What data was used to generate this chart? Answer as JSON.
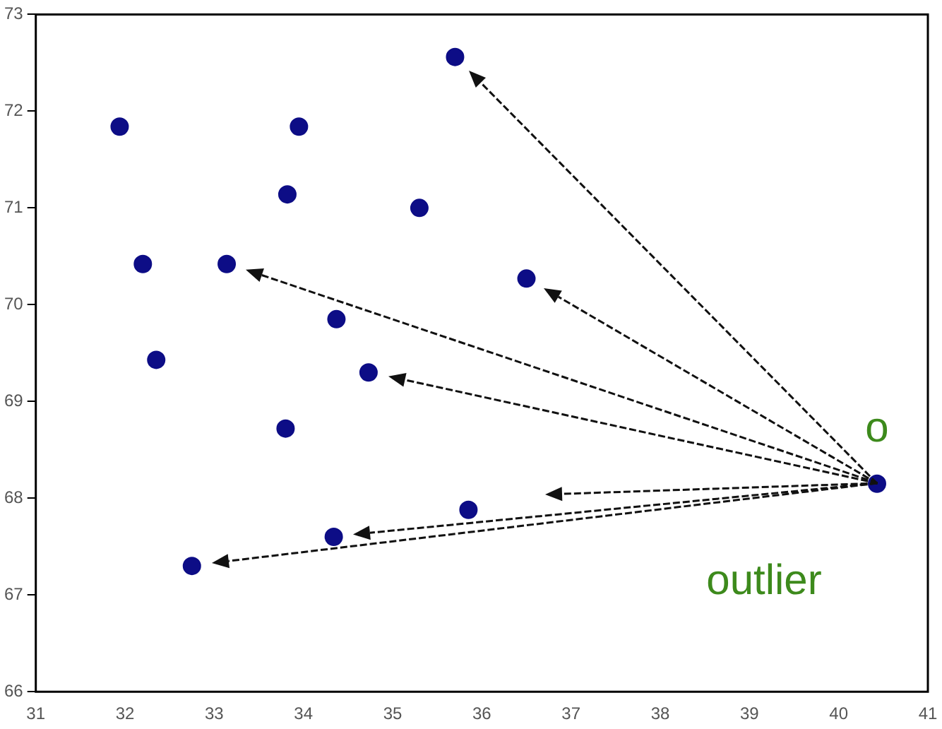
{
  "chart_data": {
    "type": "scatter",
    "x": [
      31.94,
      32.2,
      32.35,
      33.14,
      33.8,
      33.82,
      33.95,
      34.37,
      34.34,
      34.73,
      35.3,
      35.7,
      35.85,
      36.5,
      32.75,
      40.43
    ],
    "values": [
      71.84,
      70.42,
      69.43,
      70.42,
      68.72,
      71.14,
      71.84,
      69.85,
      67.6,
      69.3,
      71.0,
      72.56,
      67.88,
      70.27,
      67.3,
      68.15
    ],
    "color": "#0d0d86",
    "marker": "circle",
    "grid": false,
    "xlim": [
      31,
      41
    ],
    "xticks": [
      31,
      32,
      33,
      34,
      35,
      36,
      37,
      38,
      39,
      40,
      41
    ],
    "ylim": [
      66,
      73
    ],
    "yticks": [
      66,
      67,
      68,
      69,
      70,
      71,
      72,
      73
    ],
    "annotations": [
      "o",
      "outlier"
    ]
  }
}
